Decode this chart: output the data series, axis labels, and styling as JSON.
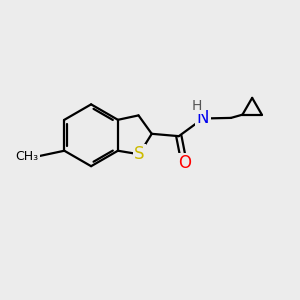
{
  "bg_color": "#ececec",
  "bond_color": "#000000",
  "bond_width": 1.6,
  "atom_colors": {
    "S": "#ccbb00",
    "O": "#ff0000",
    "N": "#0000ee",
    "H": "#555555",
    "C": "#000000"
  },
  "bg_color2": "#ebebeb"
}
